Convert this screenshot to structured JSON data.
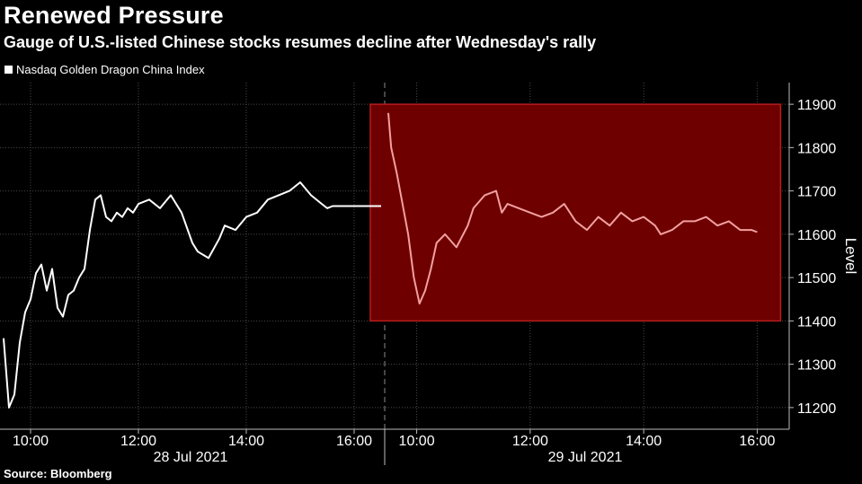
{
  "title": "Renewed Pressure",
  "subtitle": "Gauge of U.S.-listed Chinese stocks resumes decline after Wednesday's rally",
  "source": "Source: Bloomberg",
  "colors": {
    "background": "#000000",
    "line_day1": "#ffffff",
    "line_day2": "#f2a0a0",
    "highlight_fill": "#6e0000",
    "highlight_stroke": "#b81c1c",
    "grid": "#4a4a4a"
  },
  "chart_data": {
    "type": "line",
    "title": "Renewed Pressure",
    "ylabel": "Level",
    "ylim": [
      11150,
      11950
    ],
    "yticks": [
      11200,
      11300,
      11400,
      11500,
      11600,
      11700,
      11800,
      11900
    ],
    "legend": [
      "Nasdaq Golden Dragon China Index"
    ],
    "x_tick_labels": [
      "10:00",
      "12:00",
      "14:00",
      "16:00",
      "10:00",
      "12:00",
      "14:00",
      "16:00"
    ],
    "date_labels": [
      "28 Jul 2021",
      "29 Jul 2021"
    ],
    "highlight": {
      "day": "29 Jul 2021",
      "y_range": [
        11400,
        11900
      ]
    },
    "series": [
      {
        "name": "28 Jul 2021",
        "x_hours": [
          9.5,
          9.6,
          9.7,
          9.8,
          9.9,
          10.0,
          10.1,
          10.2,
          10.3,
          10.4,
          10.5,
          10.6,
          10.7,
          10.8,
          10.9,
          11.0,
          11.1,
          11.2,
          11.3,
          11.4,
          11.5,
          11.6,
          11.7,
          11.8,
          11.9,
          12.0,
          12.2,
          12.4,
          12.6,
          12.8,
          13.0,
          13.1,
          13.3,
          13.5,
          13.6,
          13.8,
          14.0,
          14.2,
          14.4,
          14.6,
          14.8,
          15.0,
          15.2,
          15.4,
          15.5,
          15.6,
          15.7,
          15.8,
          16.0,
          16.2,
          16.5
        ],
        "values": [
          11360,
          11200,
          11230,
          11350,
          11420,
          11450,
          11510,
          11530,
          11470,
          11520,
          11430,
          11410,
          11460,
          11470,
          11500,
          11520,
          11610,
          11680,
          11690,
          11640,
          11630,
          11650,
          11640,
          11660,
          11650,
          11670,
          11680,
          11660,
          11690,
          11650,
          11580,
          11560,
          11545,
          11590,
          11620,
          11610,
          11640,
          11650,
          11680,
          11690,
          11700,
          11720,
          11690,
          11670,
          11660,
          11665,
          11665,
          11665,
          11665,
          11665,
          11665
        ]
      },
      {
        "name": "29 Jul 2021",
        "x_hours": [
          9.5,
          9.55,
          9.65,
          9.75,
          9.85,
          9.95,
          10.05,
          10.15,
          10.25,
          10.35,
          10.5,
          10.7,
          10.9,
          11.0,
          11.2,
          11.4,
          11.5,
          11.6,
          11.8,
          12.0,
          12.2,
          12.4,
          12.6,
          12.8,
          13.0,
          13.2,
          13.4,
          13.6,
          13.8,
          14.0,
          14.2,
          14.3,
          14.5,
          14.7,
          14.9,
          15.1,
          15.3,
          15.5,
          15.7,
          15.9,
          16.0
        ],
        "values": [
          11880,
          11800,
          11740,
          11670,
          11600,
          11500,
          11440,
          11470,
          11520,
          11580,
          11600,
          11570,
          11620,
          11660,
          11690,
          11700,
          11650,
          11670,
          11660,
          11650,
          11640,
          11650,
          11670,
          11630,
          11610,
          11640,
          11620,
          11650,
          11630,
          11640,
          11620,
          11600,
          11610,
          11630,
          11630,
          11640,
          11620,
          11630,
          11610,
          11610,
          11605
        ]
      }
    ]
  }
}
